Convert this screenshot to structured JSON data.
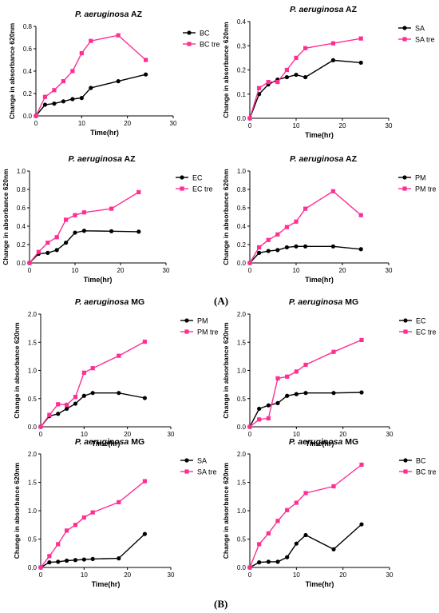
{
  "panel_labels": {
    "a": "(A)",
    "b": "(B)"
  },
  "colors": {
    "series1": "#000000",
    "series2": "#ff2e93"
  },
  "chart_data": [
    {
      "type": "line",
      "title_species": "P. aeruginosa",
      "title_strain": "AZ",
      "xlabel": "Time(hr)",
      "ylabel": "Change in absorbance 620nm",
      "xlim": [
        0,
        30
      ],
      "xticks": [
        0,
        10,
        20,
        30
      ],
      "ylim": [
        0,
        0.8
      ],
      "yticks": [
        "0.0",
        "0.2",
        "0.4",
        "0.6",
        "0.8"
      ],
      "legend_position": "right",
      "series": [
        {
          "name": "BC",
          "x": [
            0,
            2,
            4,
            6,
            8,
            10,
            12,
            18,
            24
          ],
          "y": [
            0,
            0.1,
            0.11,
            0.13,
            0.15,
            0.16,
            0.25,
            0.31,
            0.37
          ]
        },
        {
          "name": "BC tre",
          "x": [
            0,
            2,
            4,
            6,
            8,
            10,
            12,
            18,
            24
          ],
          "y": [
            0,
            0.17,
            0.23,
            0.31,
            0.4,
            0.56,
            0.67,
            0.72,
            0.5
          ]
        }
      ]
    },
    {
      "type": "line",
      "title_species": "P. aeruginosa",
      "title_strain": "AZ",
      "xlabel": "Time(hr)",
      "ylabel": "Change in absorbance 620nm",
      "xlim": [
        0,
        30
      ],
      "xticks": [
        0,
        10,
        20,
        30
      ],
      "ylim": [
        0,
        0.4
      ],
      "yticks": [
        "0.0",
        "0.1",
        "0.2",
        "0.3",
        "0.4"
      ],
      "legend_position": "right",
      "series": [
        {
          "name": "SA",
          "x": [
            0,
            2,
            4,
            6,
            8,
            10,
            12,
            18,
            24
          ],
          "y": [
            0,
            0.1,
            0.14,
            0.16,
            0.17,
            0.18,
            0.17,
            0.24,
            0.23
          ]
        },
        {
          "name": "SA tre",
          "x": [
            0,
            2,
            4,
            6,
            8,
            10,
            12,
            18,
            24
          ],
          "y": [
            0,
            0.125,
            0.15,
            0.15,
            0.2,
            0.25,
            0.29,
            0.31,
            0.33
          ]
        }
      ]
    },
    {
      "type": "line",
      "title_species": "P. aeruginosa",
      "title_strain": "AZ",
      "xlabel": "Time(hr)",
      "ylabel": "Change in absorbance 620nm",
      "xlim": [
        0,
        30
      ],
      "xticks": [
        0,
        10,
        20,
        30
      ],
      "ylim": [
        0,
        1.0
      ],
      "yticks": [
        "0.0",
        "0.2",
        "0.4",
        "0.6",
        "0.8",
        "1.0"
      ],
      "legend_position": "right",
      "series": [
        {
          "name": "EC",
          "x": [
            0,
            2,
            4,
            6,
            8,
            10,
            12,
            18,
            24
          ],
          "y": [
            0,
            0.1,
            0.11,
            0.14,
            0.22,
            0.33,
            0.35,
            0.345,
            0.34
          ]
        },
        {
          "name": "EC tre",
          "x": [
            0,
            2,
            4,
            6,
            8,
            10,
            12,
            18,
            24
          ],
          "y": [
            0,
            0.12,
            0.22,
            0.28,
            0.47,
            0.52,
            0.55,
            0.59,
            0.77
          ]
        }
      ]
    },
    {
      "type": "line",
      "title_species": "P. aeruginosa",
      "title_strain": "AZ",
      "xlabel": "Time(hr)",
      "ylabel": "Change in absorbance 620nm",
      "xlim": [
        0,
        30
      ],
      "xticks": [
        0,
        10,
        20,
        30
      ],
      "ylim": [
        0,
        1.0
      ],
      "yticks": [
        "0.0",
        "0.2",
        "0.4",
        "0.6",
        "0.8",
        "1.0"
      ],
      "legend_position": "right",
      "series": [
        {
          "name": "PM",
          "x": [
            0,
            2,
            4,
            6,
            8,
            10,
            12,
            18,
            24
          ],
          "y": [
            0,
            0.11,
            0.13,
            0.14,
            0.17,
            0.18,
            0.18,
            0.18,
            0.15
          ]
        },
        {
          "name": "PM tre",
          "x": [
            0,
            2,
            4,
            6,
            8,
            10,
            12,
            18,
            24
          ],
          "y": [
            0,
            0.17,
            0.25,
            0.31,
            0.39,
            0.45,
            0.59,
            0.78,
            0.52
          ]
        }
      ]
    },
    {
      "type": "line",
      "title_species": "P. aeruginosa",
      "title_strain": "MG",
      "xlabel": "Time(hr)",
      "ylabel": "Change in absorbance 620nm",
      "xlim": [
        0,
        30
      ],
      "xticks": [
        0,
        10,
        20,
        30
      ],
      "ylim": [
        0,
        2.0
      ],
      "yticks": [
        "0.0",
        "0.5",
        "1.0",
        "1.5",
        "2.0"
      ],
      "legend_position": "right",
      "series": [
        {
          "name": "PM",
          "x": [
            0,
            2,
            4,
            6,
            8,
            10,
            12,
            18,
            24
          ],
          "y": [
            0,
            0.19,
            0.23,
            0.32,
            0.41,
            0.55,
            0.6,
            0.6,
            0.51
          ]
        },
        {
          "name": "PM tre",
          "x": [
            0,
            2,
            4,
            6,
            8,
            10,
            12,
            18,
            24
          ],
          "y": [
            0,
            0.21,
            0.4,
            0.39,
            0.53,
            0.96,
            1.04,
            1.26,
            1.51
          ]
        }
      ]
    },
    {
      "type": "line",
      "title_species": "P. aeruginosa",
      "title_strain": "MG",
      "xlabel": "Time(hr)",
      "ylabel": "Change in absorbance 620nm",
      "xlim": [
        0,
        30
      ],
      "xticks": [
        0,
        10,
        20,
        30
      ],
      "ylim": [
        0,
        2.0
      ],
      "yticks": [
        "0.0",
        "0.5",
        "1.0",
        "1.5",
        "2.0"
      ],
      "legend_position": "right",
      "series": [
        {
          "name": "EC",
          "x": [
            0,
            2,
            4,
            6,
            8,
            10,
            12,
            18,
            24
          ],
          "y": [
            0,
            0.32,
            0.38,
            0.42,
            0.55,
            0.58,
            0.6,
            0.6,
            0.61
          ]
        },
        {
          "name": "EC tre",
          "x": [
            0,
            2,
            4,
            6,
            8,
            10,
            12,
            18,
            24
          ],
          "y": [
            0,
            0.13,
            0.15,
            0.86,
            0.89,
            0.98,
            1.1,
            1.33,
            1.54
          ]
        }
      ]
    },
    {
      "type": "line",
      "title_species": "P. aeruginosa",
      "title_strain": "MG",
      "xlabel": "Time(hr)",
      "ylabel": "Change in absorbance 620nm",
      "xlim": [
        0,
        30
      ],
      "xticks": [
        0,
        10,
        20,
        30
      ],
      "ylim": [
        0,
        2.0
      ],
      "yticks": [
        "0.0",
        "0.5",
        "1.0",
        "1.5",
        "2.0"
      ],
      "legend_position": "right",
      "series": [
        {
          "name": "SA",
          "x": [
            0,
            2,
            4,
            6,
            8,
            10,
            12,
            18,
            24
          ],
          "y": [
            0,
            0.09,
            0.1,
            0.12,
            0.13,
            0.14,
            0.15,
            0.16,
            0.59
          ]
        },
        {
          "name": "SA tre",
          "x": [
            0,
            2,
            4,
            6,
            8,
            10,
            12,
            18,
            24
          ],
          "y": [
            0,
            0.2,
            0.41,
            0.65,
            0.75,
            0.88,
            0.97,
            1.15,
            1.52
          ]
        }
      ]
    },
    {
      "type": "line",
      "title_species": "P. aeruginosa",
      "title_strain": "MG",
      "xlabel": "Time(hr)",
      "ylabel": "Change in absorbance 620nm",
      "xlim": [
        0,
        30
      ],
      "xticks": [
        0,
        10,
        20,
        30
      ],
      "ylim": [
        0,
        2.0
      ],
      "yticks": [
        "0.0",
        "0.5",
        "1.0",
        "1.5",
        "2.0"
      ],
      "legend_position": "right",
      "series": [
        {
          "name": "BC",
          "x": [
            0,
            2,
            4,
            6,
            8,
            10,
            12,
            18,
            24
          ],
          "y": [
            0,
            0.09,
            0.1,
            0.1,
            0.18,
            0.42,
            0.57,
            0.32,
            0.76
          ]
        },
        {
          "name": "BC tre",
          "x": [
            0,
            2,
            4,
            6,
            8,
            10,
            12,
            18,
            24
          ],
          "y": [
            0,
            0.41,
            0.6,
            0.82,
            1.01,
            1.14,
            1.31,
            1.43,
            1.81
          ]
        }
      ]
    }
  ]
}
